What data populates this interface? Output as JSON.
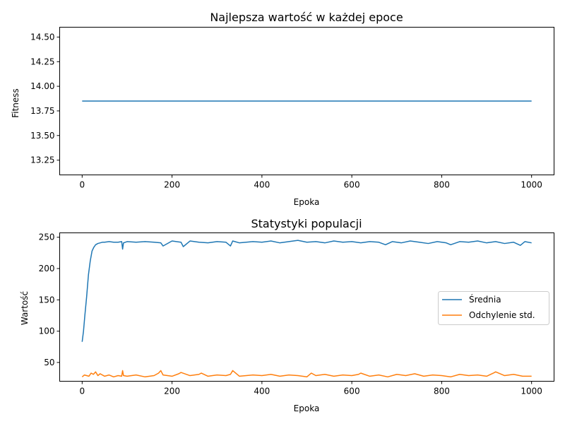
{
  "chart_data": [
    {
      "type": "line",
      "title": "Najlepsza wartość w każdej epoce",
      "xlabel": "Epoka",
      "ylabel": "Fitness",
      "xlim": [
        -50,
        1050
      ],
      "ylim": [
        13.1,
        14.6
      ],
      "xticks": [
        0,
        200,
        400,
        600,
        800,
        1000
      ],
      "yticks": [
        13.25,
        13.5,
        13.75,
        14.0,
        14.25,
        14.5
      ],
      "ytick_labels": [
        "13.25",
        "13.50",
        "13.75",
        "14.00",
        "14.25",
        "14.50"
      ],
      "grid": false,
      "series": [
        {
          "color": "#1f77b4",
          "x": [
            0,
            1000
          ],
          "values": [
            13.85,
            13.85
          ]
        }
      ]
    },
    {
      "type": "line",
      "title": "Statystyki populacji",
      "xlabel": "Epoka",
      "ylabel": "Wartość",
      "xlim": [
        -50,
        1050
      ],
      "ylim": [
        20,
        257
      ],
      "xticks": [
        0,
        200,
        400,
        600,
        800,
        1000
      ],
      "yticks": [
        50,
        100,
        150,
        200,
        250
      ],
      "grid": false,
      "legend": "center-right",
      "series": [
        {
          "name": "Średnia",
          "color": "#1f77b4",
          "x": [
            0,
            3,
            6,
            10,
            14,
            18,
            22,
            26,
            30,
            35,
            40,
            45,
            50,
            60,
            70,
            80,
            88,
            90,
            92,
            100,
            120,
            140,
            160,
            175,
            180,
            200,
            220,
            225,
            240,
            260,
            280,
            300,
            320,
            330,
            335,
            350,
            380,
            400,
            420,
            440,
            460,
            480,
            500,
            520,
            540,
            560,
            580,
            600,
            620,
            640,
            660,
            675,
            690,
            710,
            730,
            750,
            770,
            790,
            810,
            820,
            840,
            860,
            880,
            900,
            920,
            940,
            960,
            975,
            985,
            1000
          ],
          "values": [
            83,
            100,
            125,
            155,
            190,
            212,
            228,
            234,
            238,
            240,
            241,
            242,
            242,
            243,
            242,
            242,
            243,
            231,
            241,
            243,
            242,
            243,
            242,
            241,
            236,
            244,
            242,
            235,
            244,
            242,
            241,
            243,
            242,
            236,
            244,
            241,
            243,
            242,
            244,
            241,
            243,
            245,
            242,
            243,
            241,
            244,
            242,
            243,
            241,
            243,
            242,
            238,
            243,
            241,
            244,
            242,
            240,
            243,
            241,
            238,
            243,
            242,
            244,
            241,
            243,
            240,
            242,
            237,
            243,
            241
          ]
        },
        {
          "name": "Odchylenie std.",
          "color": "#ff7f0e",
          "x": [
            0,
            5,
            10,
            15,
            20,
            25,
            30,
            35,
            40,
            50,
            60,
            70,
            80,
            88,
            90,
            92,
            100,
            120,
            140,
            160,
            170,
            175,
            180,
            200,
            215,
            220,
            240,
            260,
            265,
            280,
            300,
            320,
            330,
            335,
            350,
            380,
            400,
            420,
            440,
            460,
            480,
            500,
            510,
            520,
            540,
            560,
            580,
            600,
            615,
            620,
            640,
            660,
            680,
            700,
            720,
            740,
            760,
            780,
            800,
            820,
            840,
            860,
            880,
            900,
            915,
            920,
            940,
            960,
            980,
            1000
          ],
          "values": [
            27,
            30,
            29,
            28,
            33,
            31,
            35,
            29,
            32,
            28,
            30,
            27,
            29,
            28,
            37,
            29,
            28,
            30,
            27,
            29,
            33,
            37,
            30,
            28,
            32,
            34,
            29,
            31,
            33,
            28,
            30,
            29,
            31,
            37,
            28,
            30,
            29,
            31,
            28,
            30,
            29,
            27,
            33,
            29,
            31,
            28,
            30,
            29,
            31,
            33,
            28,
            30,
            27,
            31,
            29,
            32,
            28,
            30,
            29,
            27,
            31,
            29,
            30,
            28,
            33,
            35,
            29,
            31,
            28,
            28
          ]
        }
      ]
    }
  ]
}
